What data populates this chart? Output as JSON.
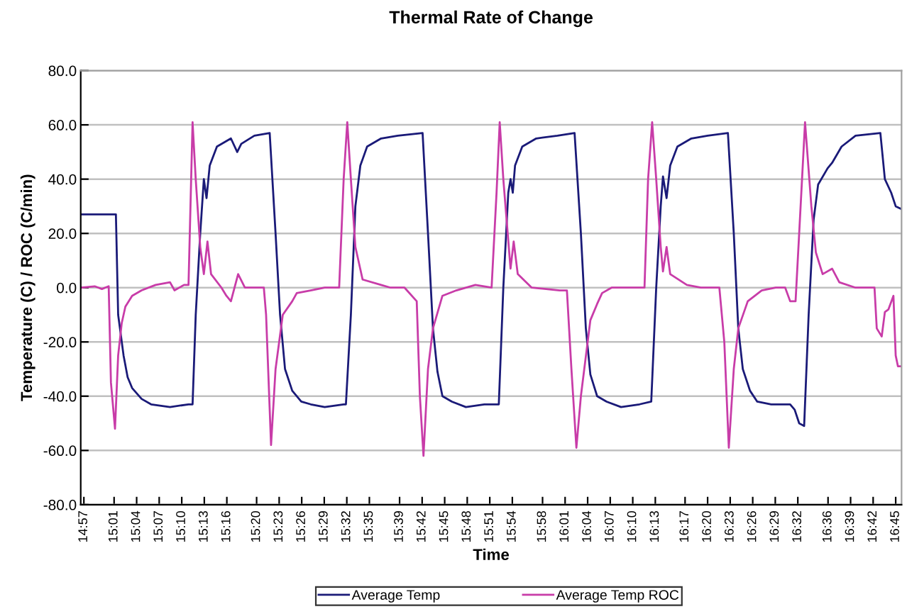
{
  "chart_data": {
    "type": "line",
    "title": "Thermal Rate of Change",
    "xlabel": "Time",
    "ylabel": "Temperature (C) / ROC (C/min)",
    "xlim": [
      14.943,
      16.763
    ],
    "ylim": [
      -80,
      80
    ],
    "yticks": [
      {
        "value": -80,
        "label": "-80.0"
      },
      {
        "value": -60,
        "label": "-60.0"
      },
      {
        "value": -40,
        "label": "-40.0"
      },
      {
        "value": -20,
        "label": "-20.0"
      },
      {
        "value": 0,
        "label": "0.0"
      },
      {
        "value": 20,
        "label": "20.0"
      },
      {
        "value": 40,
        "label": "40.0"
      },
      {
        "value": 60,
        "label": "60.0"
      },
      {
        "value": 80,
        "label": "80.0"
      }
    ],
    "xticks": [
      {
        "value": 14.95,
        "label": "14:57"
      },
      {
        "value": 15.017,
        "label": "15:01"
      },
      {
        "value": 15.067,
        "label": "15:04"
      },
      {
        "value": 15.117,
        "label": "15:07"
      },
      {
        "value": 15.167,
        "label": "15:10"
      },
      {
        "value": 15.217,
        "label": "15:13"
      },
      {
        "value": 15.267,
        "label": "15:16"
      },
      {
        "value": 15.333,
        "label": "15:20"
      },
      {
        "value": 15.383,
        "label": "15:23"
      },
      {
        "value": 15.433,
        "label": "15:26"
      },
      {
        "value": 15.483,
        "label": "15:29"
      },
      {
        "value": 15.533,
        "label": "15:32"
      },
      {
        "value": 15.583,
        "label": "15:35"
      },
      {
        "value": 15.65,
        "label": "15:39"
      },
      {
        "value": 15.7,
        "label": "15:42"
      },
      {
        "value": 15.75,
        "label": "15:45"
      },
      {
        "value": 15.8,
        "label": "15:48"
      },
      {
        "value": 15.85,
        "label": "15:51"
      },
      {
        "value": 15.9,
        "label": "15:54"
      },
      {
        "value": 15.967,
        "label": "15:58"
      },
      {
        "value": 16.017,
        "label": "16:01"
      },
      {
        "value": 16.067,
        "label": "16:04"
      },
      {
        "value": 16.117,
        "label": "16:07"
      },
      {
        "value": 16.167,
        "label": "16:10"
      },
      {
        "value": 16.217,
        "label": "16:13"
      },
      {
        "value": 16.283,
        "label": "16:17"
      },
      {
        "value": 16.333,
        "label": "16:20"
      },
      {
        "value": 16.383,
        "label": "16:23"
      },
      {
        "value": 16.433,
        "label": "16:26"
      },
      {
        "value": 16.483,
        "label": "16:29"
      },
      {
        "value": 16.533,
        "label": "16:32"
      },
      {
        "value": 16.6,
        "label": "16:36"
      },
      {
        "value": 16.65,
        "label": "16:39"
      },
      {
        "value": 16.7,
        "label": "16:42"
      },
      {
        "value": 16.75,
        "label": "16:45"
      }
    ],
    "grid": "y",
    "legend": "bottom",
    "marker": "none",
    "line_style": "solid",
    "series": [
      {
        "name": "Average Temp",
        "color": "#1a1a78",
        "x": [
          14.944,
          15.021,
          15.026,
          15.038,
          15.047,
          15.057,
          15.078,
          15.099,
          15.141,
          15.182,
          15.191,
          15.198,
          15.208,
          15.216,
          15.222,
          15.229,
          15.245,
          15.276,
          15.29,
          15.299,
          15.328,
          15.362,
          15.375,
          15.385,
          15.396,
          15.412,
          15.432,
          15.453,
          15.484,
          15.526,
          15.531,
          15.542,
          15.552,
          15.563,
          15.578,
          15.609,
          15.646,
          15.701,
          15.713,
          15.724,
          15.734,
          15.745,
          15.766,
          15.797,
          15.838,
          15.87,
          15.88,
          15.891,
          15.896,
          15.901,
          15.906,
          15.922,
          15.953,
          16.0,
          16.038,
          16.052,
          16.063,
          16.073,
          16.088,
          16.109,
          16.141,
          16.182,
          16.208,
          16.219,
          16.229,
          16.234,
          16.242,
          16.25,
          16.266,
          16.297,
          16.333,
          16.378,
          16.391,
          16.401,
          16.411,
          16.427,
          16.443,
          16.474,
          16.516,
          16.526,
          16.536,
          16.547,
          16.557,
          16.568,
          16.578,
          16.599,
          16.609,
          16.63,
          16.661,
          16.716,
          16.726,
          16.74,
          16.75,
          16.762
        ],
        "values": [
          27,
          27,
          -10,
          -25,
          -33,
          -37,
          -41,
          -43,
          -44,
          -43,
          -43,
          -10,
          20,
          40,
          33,
          45,
          52,
          55,
          50,
          53,
          56,
          57,
          20,
          -10,
          -30,
          -38,
          -42,
          -43,
          -44,
          -43,
          -43,
          -10,
          30,
          45,
          52,
          55,
          56,
          57,
          20,
          -15,
          -31,
          -40,
          -42,
          -44,
          -43,
          -43,
          0,
          35,
          40,
          35,
          45,
          52,
          55,
          56,
          57,
          20,
          -15,
          -32,
          -40,
          -42,
          -44,
          -43,
          -42,
          0,
          30,
          41,
          33,
          45,
          52,
          55,
          56,
          57,
          20,
          -15,
          -30,
          -38,
          -42,
          -43,
          -43,
          -45,
          -50,
          -51,
          -10,
          25,
          38,
          44,
          46,
          52,
          56,
          57,
          40,
          35,
          30,
          29
        ]
      },
      {
        "name": "Average Temp ROC",
        "color": "#c83ca8",
        "x": [
          14.944,
          14.974,
          14.99,
          15.005,
          15.01,
          15.019,
          15.026,
          15.034,
          15.042,
          15.057,
          15.078,
          15.109,
          15.141,
          15.151,
          15.172,
          15.182,
          15.191,
          15.198,
          15.208,
          15.216,
          15.224,
          15.232,
          15.255,
          15.266,
          15.276,
          15.292,
          15.307,
          15.349,
          15.354,
          15.365,
          15.375,
          15.391,
          15.412,
          15.422,
          15.453,
          15.484,
          15.516,
          15.526,
          15.534,
          15.542,
          15.552,
          15.568,
          15.609,
          15.63,
          15.661,
          15.688,
          15.695,
          15.703,
          15.713,
          15.724,
          15.745,
          15.776,
          15.818,
          15.854,
          15.865,
          15.872,
          15.88,
          15.896,
          15.903,
          15.912,
          15.943,
          16.005,
          16.021,
          16.031,
          16.042,
          16.052,
          16.073,
          16.088,
          16.099,
          16.12,
          16.162,
          16.193,
          16.201,
          16.21,
          16.219,
          16.229,
          16.234,
          16.242,
          16.25,
          16.287,
          16.318,
          16.359,
          16.37,
          16.38,
          16.391,
          16.401,
          16.422,
          16.453,
          16.484,
          16.505,
          16.516,
          16.528,
          16.536,
          16.549,
          16.563,
          16.573,
          16.588,
          16.609,
          16.625,
          16.661,
          16.703,
          16.708,
          16.719,
          16.726,
          16.734,
          16.745,
          16.75,
          16.755,
          16.762
        ],
        "values": [
          0,
          0.5,
          -0.5,
          0.5,
          -35,
          -52,
          -25,
          -13,
          -7,
          -3,
          -1,
          1,
          2,
          -1,
          1,
          1,
          61,
          40,
          15,
          5,
          17,
          5,
          0,
          -3,
          -5,
          5,
          0,
          0,
          -10,
          -58,
          -30,
          -10,
          -5,
          -2,
          -1,
          0,
          0,
          40,
          61,
          40,
          15,
          3,
          1,
          0,
          0,
          -5,
          -40,
          -62,
          -30,
          -15,
          -3,
          -1,
          1,
          0,
          35,
          61,
          40,
          7,
          17,
          5,
          0,
          -1,
          -1,
          -30,
          -59,
          -40,
          -12,
          -6,
          -2,
          0,
          0,
          0,
          40,
          61,
          40,
          15,
          6,
          15,
          5,
          1,
          0,
          0,
          -20,
          -59,
          -30,
          -15,
          -5,
          -1,
          0,
          0,
          -5,
          -5,
          20,
          61,
          30,
          13,
          5,
          7,
          2,
          0,
          0,
          -15,
          -18,
          -9,
          -8,
          -3,
          -25,
          -29,
          -29
        ]
      }
    ]
  }
}
